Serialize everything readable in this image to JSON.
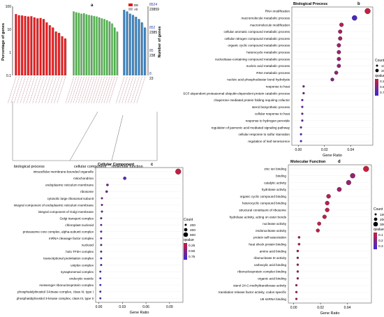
{
  "chart_data": [
    {
      "type": "bar",
      "panel_letter": "a",
      "ylabel_left": "Percentage of genes",
      "ylabel_right": "Number of genes",
      "y_ticks_left": [
        "100",
        "10",
        "1",
        "0.1"
      ],
      "y_ticks_right": [
        {
          "top": "8524",
          "bottom": "23859"
        },
        {
          "top": "852",
          "bottom": "2385"
        },
        {
          "top": "85",
          "bottom": "238"
        },
        {
          "top": "8",
          "bottom": "23"
        }
      ],
      "legend": [
        {
          "name": "DE",
          "color": "#e41a1c"
        },
        {
          "name": "All",
          "color": "#bbbbbb"
        }
      ],
      "groups": [
        {
          "name": "biological process",
          "color": "#e41a1c",
          "values": [
            46,
            41,
            40,
            38,
            36,
            37,
            33,
            30,
            31,
            28,
            20,
            15,
            12,
            8,
            7,
            5,
            4
          ]
        },
        {
          "name": "cellular component",
          "color": "#4daf4a",
          "values": [
            60,
            55,
            52,
            48,
            50,
            45,
            42,
            40,
            38,
            36,
            33,
            30,
            28,
            25,
            22,
            18,
            12,
            8
          ]
        },
        {
          "name": "molecular function",
          "color": "#377eb8",
          "values": [
            70,
            60,
            48,
            42,
            35,
            28,
            20,
            12
          ]
        }
      ]
    },
    {
      "type": "scatter",
      "panel_letter": "b",
      "title": "Biological Process",
      "xlabel": "Gene Ratio",
      "xlim": [
        -0.005,
        0.057
      ],
      "x_ticks": [
        0,
        0.02,
        0.04
      ],
      "x_tick_labels": [
        "0.00",
        "0.02",
        "0.04"
      ],
      "size_legend": {
        "title": "Count",
        "labels": [
          "100",
          "200"
        ]
      },
      "color_legend": {
        "title": "qvalue",
        "labels": [
          "0.25",
          "0.50",
          "0.75"
        ]
      },
      "points": [
        {
          "term": "RNA modification",
          "x": 0.053,
          "count": 300,
          "q": 0.0
        },
        {
          "term": "macromolecule metabolic process",
          "x": 0.043,
          "count": 230,
          "q": 0.9
        },
        {
          "term": "macromolecule modification",
          "x": 0.033,
          "count": 120,
          "q": 0.15
        },
        {
          "term": "cellular aromatic compound metabolic process",
          "x": 0.032,
          "count": 110,
          "q": 0.25
        },
        {
          "term": "cellular nitrogen compound metabolic process",
          "x": 0.032,
          "count": 110,
          "q": 0.25
        },
        {
          "term": "organic cyclic compound metabolic process",
          "x": 0.031,
          "count": 110,
          "q": 0.3
        },
        {
          "term": "heterocycle metabolic process",
          "x": 0.031,
          "count": 105,
          "q": 0.3
        },
        {
          "term": "nucleobase-containing compound metabolic process",
          "x": 0.031,
          "count": 100,
          "q": 0.35
        },
        {
          "term": "nucleic acid metabolic process",
          "x": 0.031,
          "count": 100,
          "q": 0.35
        },
        {
          "term": "RNA metabolic process",
          "x": 0.029,
          "count": 90,
          "q": 0.4
        },
        {
          "term": "nucleic acid phosphodiester bond hydrolysis",
          "x": 0.026,
          "count": 70,
          "q": 0.5
        },
        {
          "term": "response to heat",
          "x": 0.004,
          "count": 8,
          "q": 0.6
        },
        {
          "term": "SCF-dependent proteasomal ubiquitin-dependent protein catabolic process",
          "x": 0.004,
          "count": 8,
          "q": 0.6
        },
        {
          "term": "chaperone mediated protein folding requiring cofactor",
          "x": 0.003,
          "count": 6,
          "q": 0.65
        },
        {
          "term": "sterol biosynthetic process",
          "x": 0.003,
          "count": 6,
          "q": 0.65
        },
        {
          "term": "cellular response to heat",
          "x": 0.003,
          "count": 6,
          "q": 0.7
        },
        {
          "term": "response to hydrogen peroxide",
          "x": 0.003,
          "count": 6,
          "q": 0.7
        },
        {
          "term": "regulation of jasmonic acid mediated signaling pathway",
          "x": 0.002,
          "count": 5,
          "q": 0.75
        },
        {
          "term": "cellular response to sulfur starvation",
          "x": 0.002,
          "count": 5,
          "q": 0.8
        },
        {
          "term": "regulation of leaf senescence",
          "x": 0.002,
          "count": 5,
          "q": 0.85
        }
      ]
    },
    {
      "type": "scatter",
      "panel_letter": "c",
      "title": "Cellular Component",
      "xlabel": "Gene Ratio",
      "xlim": [
        -0.004,
        0.107
      ],
      "x_ticks": [
        0,
        0.03,
        0.06,
        0.09
      ],
      "x_tick_labels": [
        "0.00",
        "0.03",
        "0.06",
        "0.09"
      ],
      "size_legend": {
        "title": "Count",
        "labels": [
          "200",
          "400",
          "600"
        ]
      },
      "color_legend": {
        "title": "qvalue",
        "labels": [
          "0.25",
          "0.50",
          "0.75"
        ]
      },
      "points": [
        {
          "term": "intracellular membrane-bounded organelle",
          "x": 0.101,
          "count": 650,
          "q": 0.05
        },
        {
          "term": "mitochondrion",
          "x": 0.033,
          "count": 100,
          "q": 0.8
        },
        {
          "term": "endoplasmic reticulum membrane",
          "x": 0.011,
          "count": 30,
          "q": 0.6
        },
        {
          "term": "ribosome",
          "x": 0.01,
          "count": 25,
          "q": 0.7
        },
        {
          "term": "cytosolic large ribosomal subunit",
          "x": 0.004,
          "count": 10,
          "q": 0.5
        },
        {
          "term": "integral component of endoplasmic reticulum membrane",
          "x": 0.004,
          "count": 10,
          "q": 0.55
        },
        {
          "term": "integral component of Golgi membrane",
          "x": 0.004,
          "count": 10,
          "q": 0.6
        },
        {
          "term": "Golgi transport complex",
          "x": 0.003,
          "count": 8,
          "q": 0.65
        },
        {
          "term": "chloroplast nucleoid",
          "x": 0.003,
          "count": 8,
          "q": 0.7
        },
        {
          "term": "proteasome core complex, alpha-subunit complex",
          "x": 0.003,
          "count": 8,
          "q": 0.7
        },
        {
          "term": "mRNA cleavage factor complex",
          "x": 0.003,
          "count": 8,
          "q": 0.75
        },
        {
          "term": "nucleoid",
          "x": 0.003,
          "count": 8,
          "q": 0.75
        },
        {
          "term": "holo TFIIH complex",
          "x": 0.003,
          "count": 8,
          "q": 0.8
        },
        {
          "term": "transcriptional preinitiation complex",
          "x": 0.003,
          "count": 8,
          "q": 0.8
        },
        {
          "term": "uniplex complex",
          "x": 0.003,
          "count": 8,
          "q": 0.8
        },
        {
          "term": "synaptonemal complex",
          "x": 0.002,
          "count": 6,
          "q": 0.85
        },
        {
          "term": "endocytic vesicle",
          "x": 0.002,
          "count": 6,
          "q": 0.85
        },
        {
          "term": "messenger ribonucleoprotein complex",
          "x": 0.002,
          "count": 6,
          "q": 0.85
        },
        {
          "term": "phosphatidylinositol 3-kinase complex, class III, type I",
          "x": 0.002,
          "count": 6,
          "q": 0.85
        },
        {
          "term": "phosphatidylinositol 3-kinase complex, class III, type II",
          "x": 0.002,
          "count": 6,
          "q": 0.85
        }
      ]
    },
    {
      "type": "scatter",
      "panel_letter": "d",
      "title": "Molecular Function",
      "xlabel": "Gene Ratio",
      "xlim": [
        -0.004,
        0.058
      ],
      "x_ticks": [
        0,
        0.02,
        0.04
      ],
      "x_tick_labels": [
        "0.00",
        "0.02",
        "0.04"
      ],
      "size_legend": {
        "title": "Count",
        "labels": [
          "100",
          "200",
          "300"
        ]
      },
      "color_legend": {
        "title": "qvalue",
        "labels": [
          "0.1",
          "0.2",
          "0.3"
        ]
      },
      "points": [
        {
          "term": "zinc ion binding",
          "x": 0.054,
          "count": 330,
          "q": 0.0
        },
        {
          "term": "binding",
          "x": 0.044,
          "count": 240,
          "q": 0.35
        },
        {
          "term": "catalytic activity",
          "x": 0.041,
          "count": 220,
          "q": 0.35
        },
        {
          "term": "hydrolase activity",
          "x": 0.034,
          "count": 180,
          "q": 0.3
        },
        {
          "term": "organic cyclic compound binding",
          "x": 0.026,
          "count": 150,
          "q": 0.12
        },
        {
          "term": "heterocyclic compound binding",
          "x": 0.025,
          "count": 145,
          "q": 0.12
        },
        {
          "term": "structural constituent of ribosome",
          "x": 0.025,
          "count": 140,
          "q": 0.1
        },
        {
          "term": "hydrolase activity, acting on ester bonds",
          "x": 0.023,
          "count": 130,
          "q": 0.08
        },
        {
          "term": "nuclease activity",
          "x": 0.019,
          "count": 100,
          "q": 0.05
        },
        {
          "term": "endonuclease activity",
          "x": 0.018,
          "count": 90,
          "q": 0.05
        },
        {
          "term": "protein self-association",
          "x": 0.004,
          "count": 15,
          "q": 0.1
        },
        {
          "term": "heat shock protein binding",
          "x": 0.004,
          "count": 15,
          "q": 0.18
        },
        {
          "term": "amino acid binding",
          "x": 0.003,
          "count": 12,
          "q": 0.22
        },
        {
          "term": "ribonuclease III activity",
          "x": 0.003,
          "count": 10,
          "q": 0.25
        },
        {
          "term": "carboxylic acid binding",
          "x": 0.003,
          "count": 10,
          "q": 0.28
        },
        {
          "term": "ribonucleoprotein complex binding",
          "x": 0.003,
          "count": 10,
          "q": 0.3
        },
        {
          "term": "organic acid binding",
          "x": 0.003,
          "count": 10,
          "q": 0.3
        },
        {
          "term": "sterol 24-C-methyltransferase activity",
          "x": 0.002,
          "count": 8,
          "q": 0.32
        },
        {
          "term": "translation release factor activity, codon specific",
          "x": 0.002,
          "count": 8,
          "q": 0.32
        },
        {
          "term": "U6 snRNA binding",
          "x": 0.002,
          "count": 8,
          "q": 0.32
        }
      ]
    }
  ]
}
